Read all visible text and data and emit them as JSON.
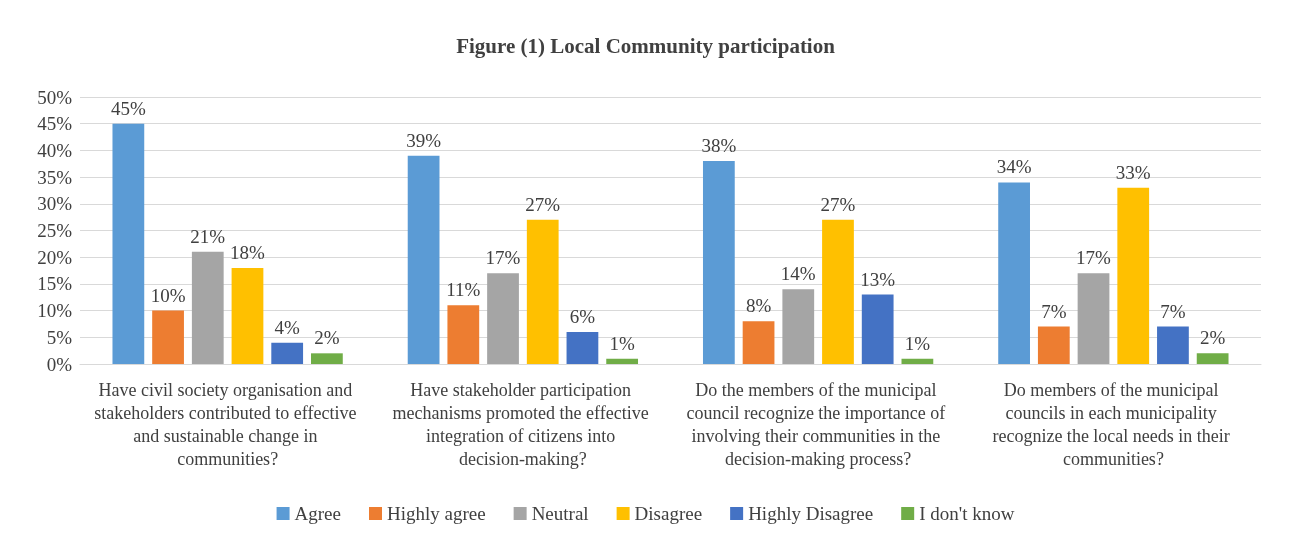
{
  "chart_data": {
    "type": "bar",
    "title": "Figure (1) Local Community participation",
    "categories": [
      "Have civil society organisation and stakeholders contributed to effective and sustainable change in communities?",
      "Have stakeholder participation mechanisms promoted the effective integration of citizens into decision-making?",
      "Do the members of the municipal council recognize the importance of involving their communities in the decision-making process?",
      "Do members of the municipal councils in each municipality recognize the local needs in their communities?"
    ],
    "series": [
      {
        "name": "Agree",
        "color": "#5b9bd5",
        "values": [
          45,
          39,
          38,
          34
        ],
        "value_labels": [
          "45%",
          "39%",
          "38%",
          "34%"
        ]
      },
      {
        "name": "Highly agree",
        "color": "#ed7d31",
        "values": [
          10,
          11,
          8,
          7
        ],
        "value_labels": [
          "10%",
          "11%",
          "8%",
          "7%"
        ]
      },
      {
        "name": "Neutral",
        "color": "#a5a5a5",
        "values": [
          21,
          17,
          14,
          17
        ],
        "value_labels": [
          "21%",
          "17%",
          "14%",
          "17%"
        ]
      },
      {
        "name": "Disagree",
        "color": "#ffc000",
        "values": [
          18,
          27,
          27,
          33
        ],
        "value_labels": [
          "18%",
          "27%",
          "27%",
          "33%"
        ]
      },
      {
        "name": "Highly Disagree",
        "color": "#4472c4",
        "values": [
          4,
          6,
          13,
          7
        ],
        "value_labels": [
          "4%",
          "6%",
          "13%",
          "7%"
        ]
      },
      {
        "name": "I don't know",
        "color": "#70ad47",
        "values": [
          2,
          1,
          1,
          2
        ],
        "value_labels": [
          "2%",
          "1%",
          "1%",
          "2%"
        ]
      }
    ],
    "ylim": [
      0,
      50
    ],
    "yticks": [
      {
        "value": 0,
        "label": "0%"
      },
      {
        "value": 5,
        "label": "5%"
      },
      {
        "value": 10,
        "label": "10%"
      },
      {
        "value": 15,
        "label": "15%"
      },
      {
        "value": 20,
        "label": "20%"
      },
      {
        "value": 25,
        "label": "25%"
      },
      {
        "value": 30,
        "label": "30%"
      },
      {
        "value": 35,
        "label": "35%"
      },
      {
        "value": 40,
        "label": "40%"
      },
      {
        "value": 45,
        "label": "45%"
      },
      {
        "value": 50,
        "label": "50%"
      }
    ],
    "grid": "y",
    "legend": "bottom"
  }
}
